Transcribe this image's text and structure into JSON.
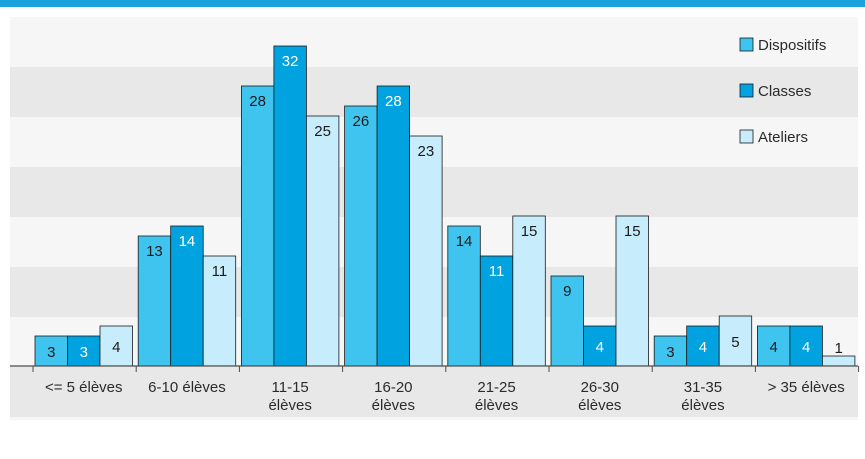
{
  "colors": {
    "top_rule": "#1aa3dc",
    "band_dark": "#e8e8e9",
    "band_light": "#f6f6f6",
    "axis": "#4a4a4a",
    "text": "#2b2b2b",
    "bar_text_on_dark": "#ffffff"
  },
  "chart_data": {
    "type": "bar",
    "categories": [
      [
        "<= 5 élèves"
      ],
      [
        "6-10 élèves"
      ],
      [
        "11-15",
        "élèves"
      ],
      [
        "16-20",
        "élèves"
      ],
      [
        "21-25",
        "élèves"
      ],
      [
        "26-30",
        "élèves"
      ],
      [
        "31-35",
        "élèves"
      ],
      [
        "> 35 élèves"
      ]
    ],
    "series": [
      {
        "name": "Dispositifs",
        "color": "#3fc4ef",
        "label_color": "#1c1c1c",
        "values": [
          3,
          13,
          28,
          26,
          14,
          9,
          3,
          4
        ]
      },
      {
        "name": "Classes",
        "color": "#00a3e0",
        "label_color": "#ffffff",
        "values": [
          3,
          14,
          32,
          28,
          11,
          4,
          4,
          4
        ]
      },
      {
        "name": "Ateliers",
        "color": "#c7ecfb",
        "label_color": "#1c1c1c",
        "values": [
          4,
          11,
          25,
          23,
          15,
          15,
          5,
          1
        ]
      }
    ],
    "ylim": [
      0,
      35
    ],
    "grid": "alternating horizontal bands",
    "legend": "top-right",
    "title": "",
    "xlabel": "",
    "ylabel": ""
  }
}
